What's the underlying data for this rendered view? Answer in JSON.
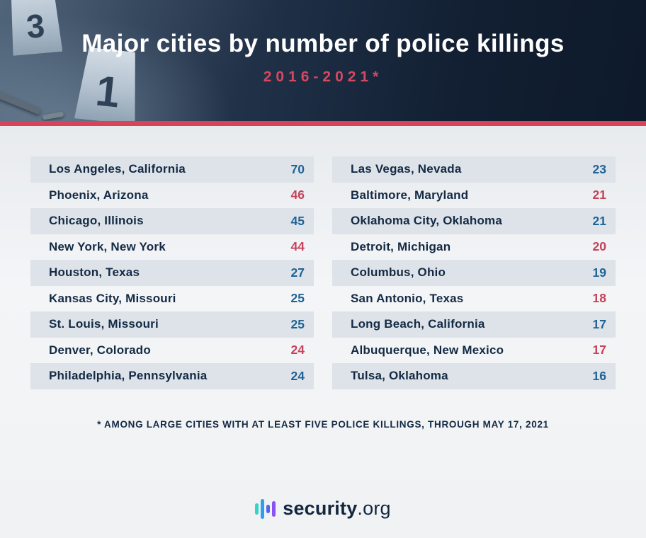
{
  "header": {
    "title": "Major cities by number of police killings",
    "subtitle": "2016-2021*",
    "evidence_markers": [
      "3",
      "1"
    ]
  },
  "chart_data": {
    "type": "table",
    "title": "Major cities by number of police killings",
    "subtitle": "2016-2021*",
    "footnote": "* AMONG LARGE CITIES WITH AT LEAST FIVE POLICE KILLINGS, THROUGH MAY 17, 2021",
    "value_palette": {
      "blue": "#1f6395",
      "red": "#c5425a"
    },
    "columns": [
      {
        "rows": [
          {
            "city": "Los Angeles, California",
            "value": 70,
            "color": "#1f6395"
          },
          {
            "city": "Phoenix, Arizona",
            "value": 46,
            "color": "#c5425a"
          },
          {
            "city": "Chicago, Illinois",
            "value": 45,
            "color": "#1f6395"
          },
          {
            "city": "New York, New York",
            "value": 44,
            "color": "#c5425a"
          },
          {
            "city": "Houston, Texas",
            "value": 27,
            "color": "#1f6395"
          },
          {
            "city": "Kansas City, Missouri",
            "value": 25,
            "color": "#1f6395"
          },
          {
            "city": "St. Louis, Missouri",
            "value": 25,
            "color": "#1f6395"
          },
          {
            "city": "Denver, Colorado",
            "value": 24,
            "color": "#c5425a"
          },
          {
            "city": "Philadelphia, Pennsylvania",
            "value": 24,
            "color": "#1f6395"
          }
        ]
      },
      {
        "rows": [
          {
            "city": "Las Vegas, Nevada",
            "value": 23,
            "color": "#1f6395"
          },
          {
            "city": "Baltimore, Maryland",
            "value": 21,
            "color": "#c5425a"
          },
          {
            "city": "Oklahoma City, Oklahoma",
            "value": 21,
            "color": "#1f6395"
          },
          {
            "city": "Detroit, Michigan",
            "value": 20,
            "color": "#c5425a"
          },
          {
            "city": "Columbus, Ohio",
            "value": 19,
            "color": "#1f6395"
          },
          {
            "city": "San Antonio, Texas",
            "value": 18,
            "color": "#c5425a"
          },
          {
            "city": "Long Beach, California",
            "value": 17,
            "color": "#1f6395"
          },
          {
            "city": "Albuquerque, New Mexico",
            "value": 17,
            "color": "#c5425a"
          },
          {
            "city": "Tulsa, Oklahoma",
            "value": 16,
            "color": "#1f6395"
          }
        ]
      }
    ]
  },
  "footer": {
    "brand": "security",
    "brand_suffix": ".org",
    "logo_colors": [
      "#35d3c7",
      "#2f9df0",
      "#5564f2",
      "#8a52f0"
    ]
  },
  "accent_colors": {
    "divider_red": "#d6435a",
    "subtitle_red": "#d5495f"
  }
}
